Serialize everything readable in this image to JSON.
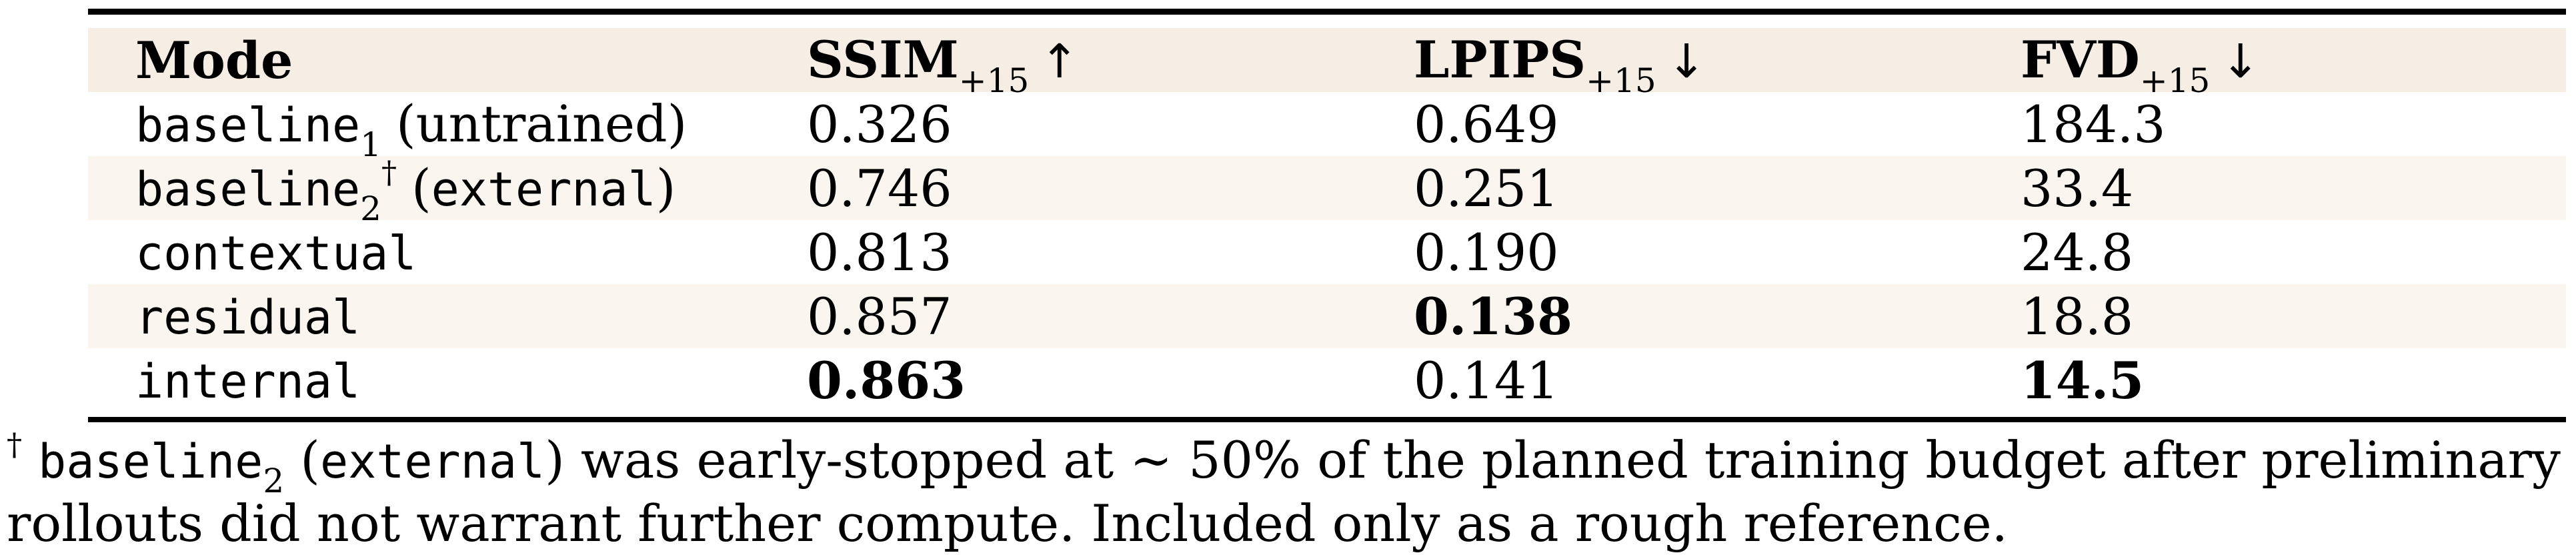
{
  "table": {
    "header": {
      "mode": "Mode",
      "ssim": {
        "label": "SSIM",
        "sub": "+15",
        "arrow": "↑"
      },
      "lpips": {
        "label": "LPIPS",
        "sub": "+15",
        "arrow": "↓"
      },
      "fvd": {
        "label": "FVD",
        "sub": "+15",
        "arrow": "↓"
      }
    },
    "parens": {
      "open": "(",
      "close": ")"
    },
    "rows": [
      {
        "mode": "baseline",
        "sub": "1",
        "dagger": "",
        "note": "untrained",
        "ssim": "0.326",
        "lpips": "0.649",
        "fvd": "184.3"
      },
      {
        "mode": "baseline",
        "sub": "2",
        "dagger": "†",
        "note": "external",
        "ssim": "0.746",
        "lpips": "0.251",
        "fvd": "33.4"
      },
      {
        "mode": "contextual",
        "sub": "",
        "dagger": "",
        "note": "",
        "ssim": "0.813",
        "lpips": "0.190",
        "fvd": "24.8"
      },
      {
        "mode": "residual",
        "sub": "",
        "dagger": "",
        "note": "",
        "ssim": "0.857",
        "lpips": "0.138",
        "fvd": "18.8"
      },
      {
        "mode": "internal",
        "sub": "",
        "dagger": "",
        "note": "",
        "ssim": "0.863",
        "lpips": "0.141",
        "fvd": "14.5"
      }
    ],
    "best_values": {
      "ssim": "0.863",
      "lpips": "0.138",
      "fvd": "14.5"
    }
  },
  "footnote": {
    "dagger": "†",
    "mono1": "baseline",
    "sub": "2",
    "open_paren": " (",
    "mono2": "external",
    "line1_rest": ") was early-stopped at ∼ 50% of the planned training budget after preliminary",
    "line2": "rollouts did not warrant further compute. Included only as a rough reference."
  },
  "colors": {
    "header_band": "#f6ede4",
    "row_stripe": "#faf5ee",
    "rule": "#000000",
    "background": "#ffffff",
    "text": "#000000"
  }
}
